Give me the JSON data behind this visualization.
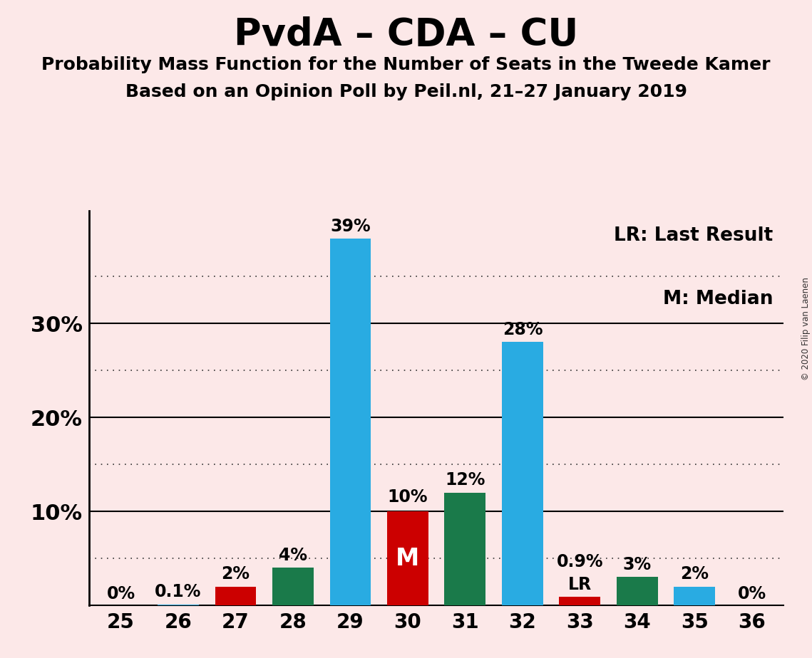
{
  "title": "PvdA – CDA – CU",
  "subtitle1": "Probability Mass Function for the Number of Seats in the Tweede Kamer",
  "subtitle2": "Based on an Opinion Poll by Peil.nl, 21–27 January 2019",
  "watermark": "© 2020 Filip van Laenen",
  "legend_lr": "LR: Last Result",
  "legend_m": "M: Median",
  "background_color": "#fce8e8",
  "seats": [
    25,
    26,
    27,
    28,
    29,
    30,
    31,
    32,
    33,
    34,
    35,
    36
  ],
  "values": [
    0.0,
    0.1,
    2.0,
    4.0,
    39.0,
    10.0,
    12.0,
    28.0,
    0.9,
    3.0,
    2.0,
    0.0
  ],
  "labels": [
    "0%",
    "0.1%",
    "2%",
    "4%",
    "39%",
    "10%",
    "12%",
    "28%",
    "0.9%",
    "3%",
    "2%",
    "0%"
  ],
  "colors": [
    "#29abe2",
    "#29abe2",
    "#cc0000",
    "#1a7a4a",
    "#29abe2",
    "#cc0000",
    "#1a7a4a",
    "#29abe2",
    "#cc0000",
    "#1a7a4a",
    "#29abe2",
    "#29abe2"
  ],
  "median_seat": 30,
  "lr_seat": 33,
  "ylim": [
    0,
    42
  ],
  "major_yticks": [
    10,
    20,
    30
  ],
  "dotted_yticks": [
    5,
    15,
    25,
    35
  ],
  "bar_width": 0.72,
  "title_fontsize": 38,
  "subtitle_fontsize": 18,
  "label_fontsize": 17,
  "tick_fontsize": 20,
  "legend_fontsize": 19,
  "median_label_fontsize": 24,
  "ytick_label_fontsize": 22
}
